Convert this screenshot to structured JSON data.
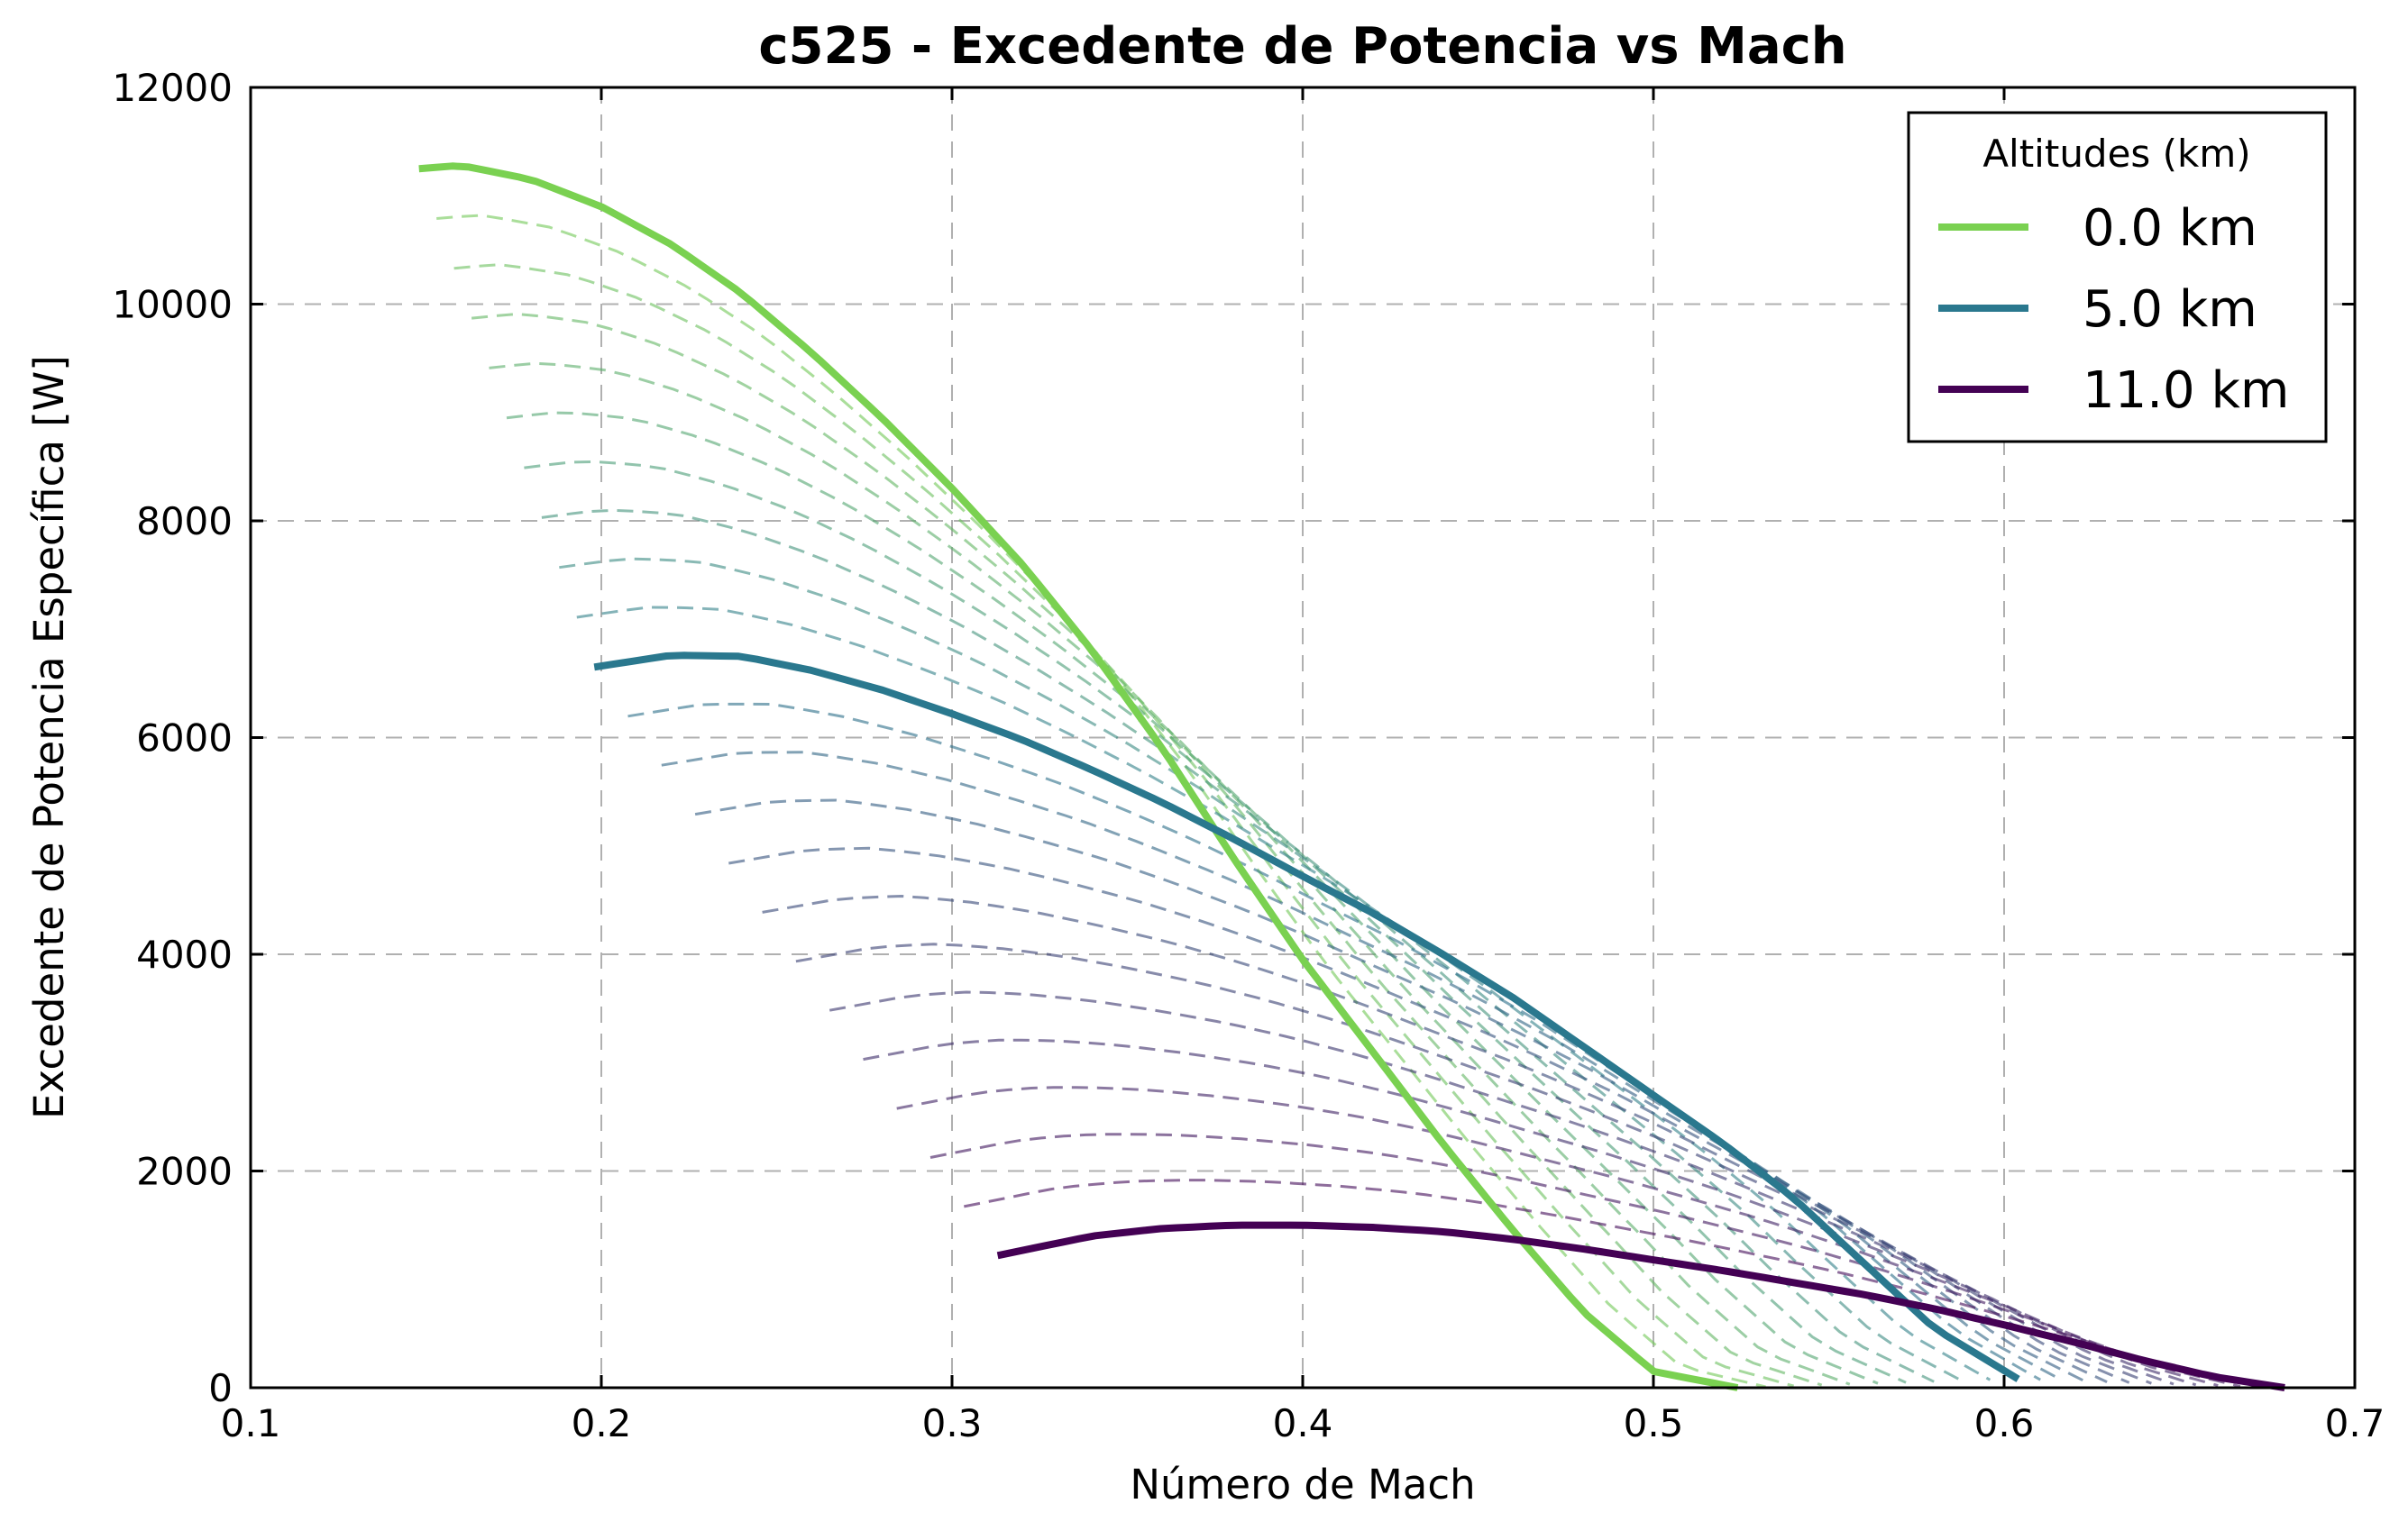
{
  "chart_data": {
    "type": "line",
    "title": "c525 - Excedente de Potencia vs Mach",
    "xlabel": "Número de Mach",
    "ylabel": "Excedente de Potencia Específica [W]",
    "xlim": [
      0.1,
      0.7
    ],
    "ylim": [
      0,
      12000
    ],
    "xticks": [
      "0.1",
      "0.2",
      "0.3",
      "0.4",
      "0.5",
      "0.6",
      "0.7"
    ],
    "yticks": [
      "0",
      "2000",
      "4000",
      "6000",
      "8000",
      "10000",
      "12000"
    ],
    "grid": true,
    "legend": {
      "title": "Altitudes (km)",
      "placement": "top-right",
      "entries": [
        "0.0 km",
        "5.0 km",
        "11.0 km"
      ]
    },
    "colors": {
      "alt_0": "#7ad151",
      "alt_5": "#2a788e",
      "alt_11": "#440154",
      "grid": "#b0b0b0"
    },
    "series": [
      {
        "name": "0.0 km",
        "x": [
          0.148,
          0.16,
          0.18,
          0.2,
          0.22,
          0.24,
          0.26,
          0.28,
          0.3,
          0.32,
          0.34,
          0.36,
          0.38,
          0.4,
          0.42,
          0.44,
          0.46,
          0.48,
          0.5,
          0.524
        ],
        "y": [
          11250,
          11280,
          11150,
          10900,
          10550,
          10100,
          9550,
          8950,
          8300,
          7600,
          6800,
          5900,
          4900,
          3950,
          3100,
          2250,
          1450,
          700,
          150,
          0
        ]
      },
      {
        "name": "5.0 km",
        "x": [
          0.198,
          0.22,
          0.24,
          0.26,
          0.28,
          0.3,
          0.32,
          0.34,
          0.36,
          0.38,
          0.4,
          0.42,
          0.44,
          0.46,
          0.48,
          0.5,
          0.52,
          0.54,
          0.56,
          0.58,
          0.604
        ],
        "y": [
          6650,
          6760,
          6750,
          6620,
          6440,
          6220,
          5980,
          5700,
          5400,
          5070,
          4720,
          4380,
          4000,
          3600,
          3150,
          2700,
          2250,
          1750,
          1150,
          550,
          80
        ]
      },
      {
        "name": "11.0 km",
        "x": [
          0.313,
          0.34,
          0.36,
          0.38,
          0.4,
          0.42,
          0.44,
          0.46,
          0.48,
          0.5,
          0.52,
          0.54,
          0.56,
          0.58,
          0.6,
          0.62,
          0.64,
          0.66,
          0.68
        ],
        "y": [
          1220,
          1400,
          1470,
          1500,
          1500,
          1480,
          1440,
          1370,
          1280,
          1180,
          1080,
          970,
          860,
          730,
          580,
          420,
          250,
          100,
          0
        ]
      }
    ],
    "intermediate_curves": {
      "style": "dashed",
      "count": 21,
      "note_shape": "interpolated between 0.0 km, 5.0 km and 11.0 km curves"
    }
  }
}
